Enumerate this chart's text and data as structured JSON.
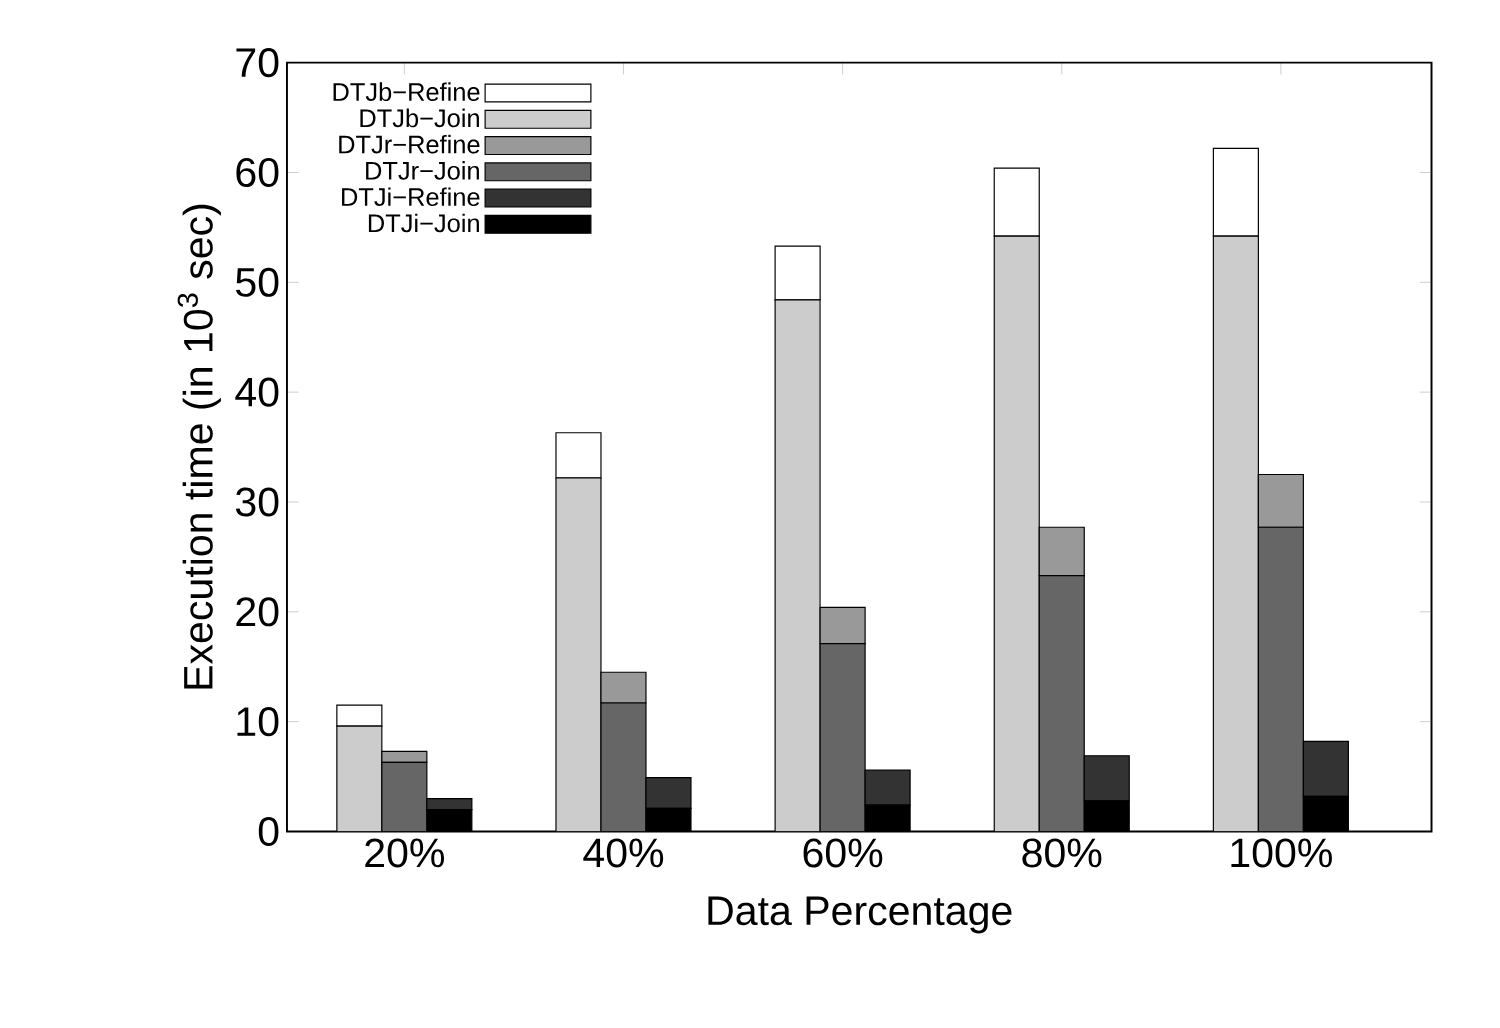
{
  "chart_data": {
    "type": "bar",
    "xlabel": "Data Percentage",
    "ylabel": "Execution time (in 10$^{3}$ sec)",
    "categories": [
      "20%",
      "40%",
      "60%",
      "80%",
      "100%"
    ],
    "ylim": [
      0,
      70
    ],
    "yticks": [
      0,
      10,
      20,
      30,
      40,
      50,
      60,
      70
    ],
    "grid": false,
    "legend": "top left",
    "series": [
      {
        "name": "DTJb−Refine",
        "color": "#ffffff",
        "values": [
          1.9,
          4.1,
          4.9,
          6.2,
          8.0
        ],
        "base": [
          9.6,
          32.2,
          48.4,
          54.2,
          54.2
        ]
      },
      {
        "name": "DTJb−Join",
        "color": "#cccccc",
        "values": [
          9.6,
          32.2,
          48.4,
          54.2,
          54.2
        ]
      },
      {
        "name": "DTJr−Refine",
        "color": "#999999",
        "values": [
          1.0,
          2.8,
          3.3,
          4.4,
          4.8
        ],
        "base": [
          6.3,
          11.7,
          17.1,
          23.3,
          27.7
        ]
      },
      {
        "name": "DTJr−Join",
        "color": "#666666",
        "values": [
          6.3,
          11.7,
          17.1,
          23.3,
          27.7
        ]
      },
      {
        "name": "DTJi−Refine",
        "color": "#333333",
        "values": [
          1.0,
          2.8,
          3.2,
          4.1,
          5.0
        ],
        "base": [
          2.0,
          2.1,
          2.4,
          2.8,
          3.2
        ]
      },
      {
        "name": "DTJi−Join",
        "color": "#000000",
        "values": [
          2.0,
          2.1,
          2.4,
          2.8,
          3.2
        ]
      }
    ]
  }
}
